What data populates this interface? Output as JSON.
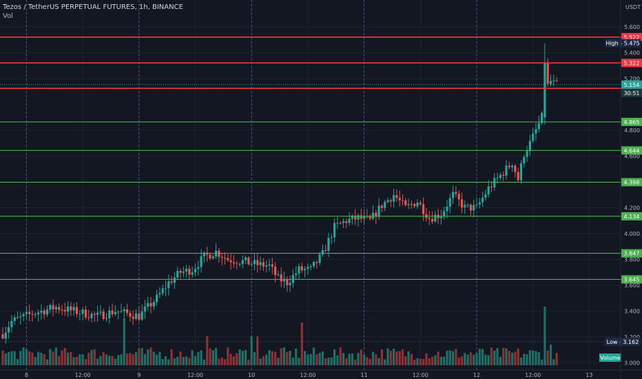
{
  "header": {
    "title": "Tezos / TetherUS PERPETUAL FUTURES, 1h, BINANCE",
    "volume_indicator": "Vol",
    "currency": "USDT"
  },
  "colors": {
    "background": "#131722",
    "grid": "#1e222d",
    "up": "#26a69a",
    "down": "#ef5350",
    "up_volume": "#1f6f67",
    "down_volume": "#8f3033",
    "resistance": "#f23645",
    "support": "#4caf50",
    "session_break": "#4a5a8a",
    "axis_text": "#b2b5be"
  },
  "chart_data": {
    "type": "candlestick",
    "title": "Tezos / TetherUS PERPETUAL FUTURES, 1h, BINANCE",
    "ylim": [
      2.98,
      5.66
    ],
    "y_ticks": [
      "5.600",
      "5.400",
      "5.200",
      "4.800",
      "4.600",
      "4.200",
      "4.000",
      "3.800",
      "3.600",
      "3.400",
      "3.200",
      "3.000"
    ],
    "x_ticks": [
      "8",
      "12:00",
      "9",
      "12:00",
      "10",
      "12:00",
      "11",
      "12:00",
      "12",
      "12:00",
      "13"
    ],
    "session_breaks": [
      "8",
      "9",
      "10",
      "11",
      "12"
    ],
    "horizontal_levels": [
      {
        "value": 5.522,
        "label": "5.522",
        "kind": "resistance"
      },
      {
        "value": 5.322,
        "label": "5.322",
        "kind": "resistance"
      },
      {
        "value": 5.125,
        "label": "5.125",
        "kind": "resistance"
      },
      {
        "value": 4.865,
        "label": "4.865",
        "kind": "support"
      },
      {
        "value": 4.644,
        "label": "4.644",
        "kind": "support"
      },
      {
        "value": 4.398,
        "label": "4.398",
        "kind": "support"
      },
      {
        "value": 4.134,
        "label": "4.134",
        "kind": "support"
      },
      {
        "value": 3.847,
        "label": "3.847",
        "kind": "support"
      },
      {
        "value": 3.645,
        "label": "3.645",
        "kind": "support"
      }
    ],
    "high": {
      "value": 5.475,
      "label": "High",
      "text": "5.475"
    },
    "low": {
      "value": 3.162,
      "label": "Low",
      "text": "3.162"
    },
    "last_price": {
      "value": 5.154,
      "text": "5.154",
      "countdown": "30:51"
    },
    "volume_label": "Volume",
    "waypoints": [
      [
        0,
        3.22
      ],
      [
        3,
        3.32
      ],
      [
        10,
        3.38
      ],
      [
        18,
        3.43
      ],
      [
        24,
        3.4
      ],
      [
        28,
        3.38
      ],
      [
        32,
        3.36
      ],
      [
        38,
        3.4
      ],
      [
        42,
        3.38
      ],
      [
        46,
        3.36
      ],
      [
        52,
        3.5
      ],
      [
        56,
        3.62
      ],
      [
        60,
        3.7
      ],
      [
        64,
        3.72
      ],
      [
        68,
        3.82
      ],
      [
        72,
        3.86
      ],
      [
        76,
        3.8
      ],
      [
        82,
        3.78
      ],
      [
        86,
        3.76
      ],
      [
        90,
        3.75
      ],
      [
        93,
        3.65
      ],
      [
        96,
        3.62
      ],
      [
        100,
        3.72
      ],
      [
        104,
        3.72
      ],
      [
        108,
        3.84
      ],
      [
        112,
        4.05
      ],
      [
        116,
        4.1
      ],
      [
        120,
        4.12
      ],
      [
        124,
        4.1
      ],
      [
        128,
        4.22
      ],
      [
        132,
        4.3
      ],
      [
        136,
        4.2
      ],
      [
        140,
        4.25
      ],
      [
        144,
        4.12
      ],
      [
        148,
        4.15
      ],
      [
        152,
        4.3
      ],
      [
        156,
        4.2
      ],
      [
        160,
        4.2
      ],
      [
        164,
        4.35
      ],
      [
        168,
        4.45
      ],
      [
        172,
        4.55
      ],
      [
        174,
        4.42
      ],
      [
        176,
        4.62
      ],
      [
        178,
        4.7
      ],
      [
        180,
        4.8
      ],
      [
        182,
        4.9
      ],
      [
        183,
        5.32
      ],
      [
        185,
        5.18
      ],
      [
        187,
        5.15
      ]
    ],
    "volume_spikes": {
      "41": 0.68,
      "69": 0.42,
      "84": 0.42,
      "86": 0.42,
      "101": 0.62,
      "183": 0.85,
      "185": 0.3
    }
  }
}
